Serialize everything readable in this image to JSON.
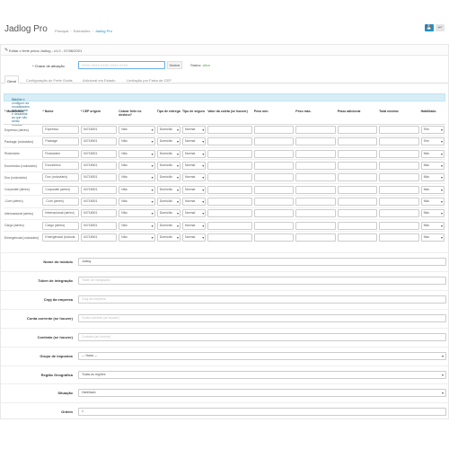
{
  "header": {
    "title": "Jadlog Pro",
    "breadcrumb": [
      "Principal",
      "Extensões",
      "Jadlog Pro"
    ],
    "save_icon": "save-icon",
    "back_icon": "back-icon"
  },
  "panel": {
    "heading": "Editar o frete pelos Jadlog - v1.0 - 07/06/2021"
  },
  "access_key": {
    "label": "* Chave de ativação",
    "placeholder": "XXXX-XXXX-XXXX-XXXX-XXXX",
    "show_button": "Mostrar",
    "status_label": "Status:",
    "status_value": "ativo"
  },
  "tabs": [
    {
      "label": "Geral"
    },
    {
      "label": "Configuração do Frete Grátis"
    },
    {
      "label": "Adicional em Estado"
    },
    {
      "label": "Limitação por Faixa de CEP"
    }
  ],
  "alert": {
    "text": "Habilite e configure as modalidades que irá usar e desabilite as que não serão usadas."
  },
  "table": {
    "headers": [
      "* Modalidade",
      "* Nome",
      "* CEP origem",
      "Cobrar frete no destino?",
      "Tipo de entrega",
      "Tipo de seguro",
      "Valor da coleta (se houver)",
      "Peso mín.",
      "Peso máx.",
      "Prazo adicional",
      "Total mínimo",
      "Habilitado"
    ],
    "rows": [
      {
        "modalidade": "Expresso (aéreo)",
        "nome": "Expresso",
        "cep": "04718001",
        "cobrar": "Não",
        "entrega": "Domicílio",
        "seguro": "Normal",
        "habilitado": "Sim"
      },
      {
        "modalidade": "Package (rodoviário)",
        "nome": "Package",
        "cep": "04718001",
        "cobrar": "Não",
        "entrega": "Domicílio",
        "seguro": "Normal",
        "habilitado": "Sim"
      },
      {
        "modalidade": "Rodoviário",
        "nome": "Rodoviário",
        "cep": "04718001",
        "cobrar": "Não",
        "entrega": "Domicílio",
        "seguro": "Normal",
        "habilitado": "Não"
      },
      {
        "modalidade": "Econômico (rodoviário)",
        "nome": "Econômico",
        "cep": "04718001",
        "cobrar": "Não",
        "entrega": "Domicílio",
        "seguro": "Normal",
        "habilitado": "Não"
      },
      {
        "modalidade": "Doc (rodoviário)",
        "nome": "Doc (rodoviário)",
        "cep": "04718001",
        "cobrar": "Não",
        "entrega": "Domicílio",
        "seguro": "Normal",
        "habilitado": "Não"
      },
      {
        "modalidade": "Corporate (aéreo)",
        "nome": "Corporate (aéreo)",
        "cep": "04718001",
        "cobrar": "Não",
        "entrega": "Domicílio",
        "seguro": "Normal",
        "habilitado": "Não"
      },
      {
        "modalidade": ".Com (aéreo)",
        "nome": ".Com (aéreo)",
        "cep": "04718001",
        "cobrar": "Não",
        "entrega": "Domicílio",
        "seguro": "Normal",
        "habilitado": "Não"
      },
      {
        "modalidade": "Internacional (aéreo)",
        "nome": "Internacional (aéreo)",
        "cep": "04718001",
        "cobrar": "Não",
        "entrega": "Domicílio",
        "seguro": "Normal",
        "habilitado": "Não"
      },
      {
        "modalidade": "Cargo (aéreo)",
        "nome": "Cargo (aéreo)",
        "cep": "04718001",
        "cobrar": "Não",
        "entrega": "Domicílio",
        "seguro": "Normal",
        "habilitado": "Não"
      },
      {
        "modalidade": "Emergêncial (rodoviário)",
        "nome": "Emergêncial (rodoviá",
        "cep": "04718001",
        "cobrar": "Não",
        "entrega": "Domicílio",
        "seguro": "Normal",
        "habilitado": "Não"
      }
    ]
  },
  "form": [
    {
      "label": "Nome do módulo",
      "value": "Jadlog",
      "placeholder": "",
      "type": "input"
    },
    {
      "label": "Token de integração",
      "value": "",
      "placeholder": "Token de integração",
      "type": "input"
    },
    {
      "label": "Cnpj da empresa",
      "value": "",
      "placeholder": "Cnpj da empresa",
      "type": "input"
    },
    {
      "label": "Conta corrente (se houver)",
      "value": "",
      "placeholder": "Conta corrente (se houver)",
      "type": "input"
    },
    {
      "label": "Contrato (se houver)",
      "value": "",
      "placeholder": "Contrato (se houver)",
      "type": "input"
    },
    {
      "label": "Grupo de impostos",
      "value": "--- Nada ---",
      "placeholder": "",
      "type": "select"
    },
    {
      "label": "Região Geográfica",
      "value": "Todas as regiões",
      "placeholder": "",
      "type": "select"
    },
    {
      "label": "Situação",
      "value": "Habilitado",
      "placeholder": "",
      "type": "select"
    },
    {
      "label": "Ordem",
      "value": "1",
      "placeholder": "",
      "type": "input"
    }
  ]
}
